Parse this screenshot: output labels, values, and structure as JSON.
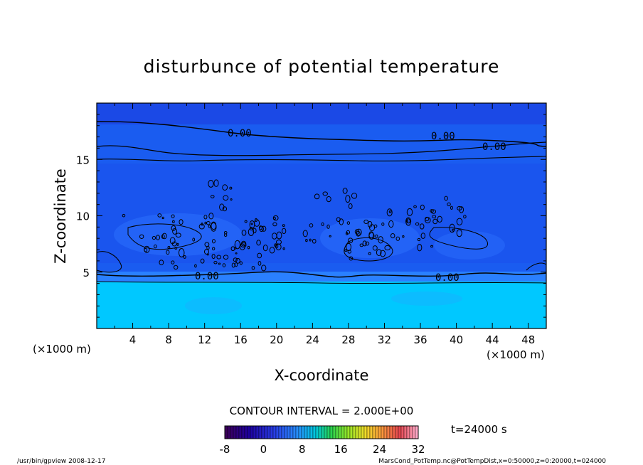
{
  "chart_data": {
    "type": "heatmap",
    "title": "disturbunce of potential temperature",
    "xlabel": "X-coordinate",
    "ylabel": "Z-coordinate",
    "x_unit": "(×1000 m)",
    "z_unit": "(×1000 m)",
    "xlim": [
      0,
      50
    ],
    "ylim": [
      0,
      20
    ],
    "x_ticks": [
      "4",
      "8",
      "12",
      "16",
      "20",
      "24",
      "28",
      "32",
      "36",
      "40",
      "44",
      "48"
    ],
    "y_ticks": [
      "5",
      "10",
      "15"
    ],
    "contour_interval_label": "CONTOUR INTERVAL = 2.000E+00",
    "contour_labels": [
      "0.00",
      "0.00",
      "0.00",
      "0.00",
      "0.00"
    ],
    "time_label": "t=24000 s",
    "colorbar": {
      "min": -8,
      "max": 32,
      "ticks": [
        "-8",
        "0",
        "8",
        "16",
        "24",
        "32"
      ]
    },
    "footer_left": "/usr/bin/gpview   2008-12-17",
    "footer_right": "MarsCond_PotTemp.nc@PotTempDist,x=0:50000,z=0:20000,t=024000",
    "colors": {
      "low_layer": "#00ccff",
      "mid": "#1a5cf0",
      "upper": "#1b49e6",
      "bright": "#2a77ff"
    }
  }
}
